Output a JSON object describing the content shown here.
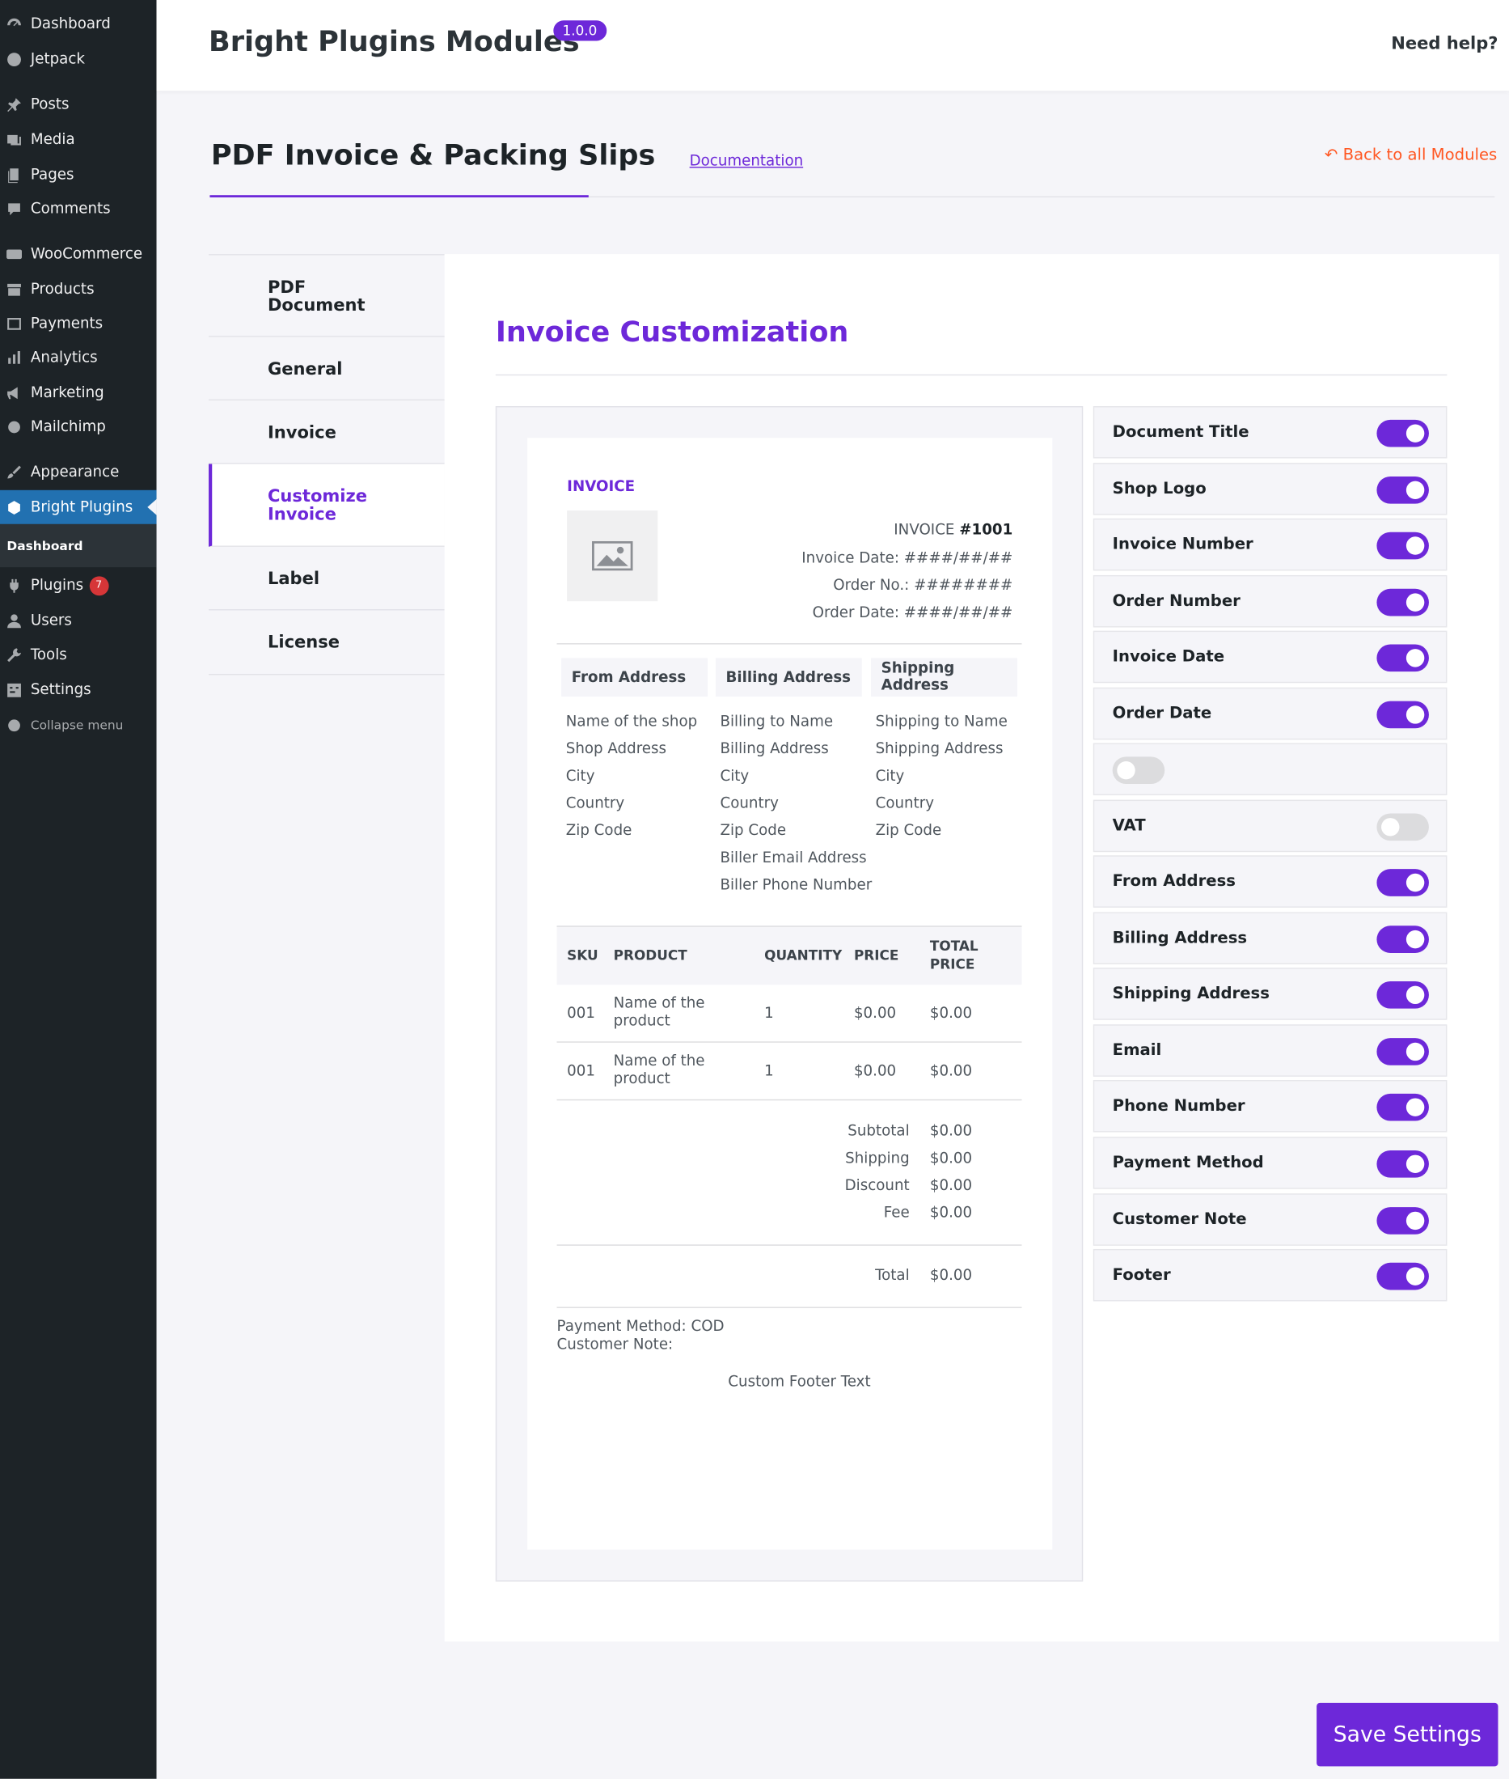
{
  "sidebar": {
    "items": [
      {
        "label": "Dashboard",
        "icon": "dashboard-icon"
      },
      {
        "label": "Jetpack",
        "icon": "jetpack-icon"
      },
      {
        "label": "Posts",
        "icon": "pin-icon"
      },
      {
        "label": "Media",
        "icon": "media-icon"
      },
      {
        "label": "Pages",
        "icon": "pages-icon"
      },
      {
        "label": "Comments",
        "icon": "comment-icon"
      },
      {
        "label": "WooCommerce",
        "icon": "woo-icon"
      },
      {
        "label": "Products",
        "icon": "archive-icon"
      },
      {
        "label": "Payments",
        "icon": "payments-icon"
      },
      {
        "label": "Analytics",
        "icon": "chart-icon"
      },
      {
        "label": "Marketing",
        "icon": "megaphone-icon"
      },
      {
        "label": "Mailchimp",
        "icon": "mailchimp-icon"
      },
      {
        "label": "Appearance",
        "icon": "brush-icon"
      },
      {
        "label": "Bright Plugins",
        "icon": "bright-plugins-icon"
      },
      {
        "label": "Plugins",
        "icon": "plugin-icon",
        "badge": "7"
      },
      {
        "label": "Users",
        "icon": "users-icon"
      },
      {
        "label": "Tools",
        "icon": "wrench-icon"
      },
      {
        "label": "Settings",
        "icon": "settings-icon"
      },
      {
        "label": "Collapse menu",
        "icon": "collapse-icon"
      }
    ],
    "submenu": "Dashboard"
  },
  "header": {
    "title": "Bright Plugins Modules",
    "version": "1.0.0",
    "help": "Need help?"
  },
  "page": {
    "title": "PDF Invoice & Packing Slips",
    "docs_link": "Documentation",
    "back_link": "Back to all Modules"
  },
  "tabs": [
    {
      "label": "PDF Document"
    },
    {
      "label": "General"
    },
    {
      "label": "Invoice"
    },
    {
      "label": "Customize Invoice"
    },
    {
      "label": "Label"
    },
    {
      "label": "License"
    }
  ],
  "panel": {
    "title": "Invoice Customization"
  },
  "invoice": {
    "label": "INVOICE",
    "number_prefix": "INVOICE",
    "number": "#1001",
    "date": "Invoice Date: ####/##/##",
    "order_no": "Order No.: ########",
    "order_date": "Order Date: ####/##/##",
    "addresses": [
      {
        "title": "From Address",
        "lines": [
          "Name of the shop",
          "Shop Address",
          "City",
          "Country",
          "Zip Code"
        ]
      },
      {
        "title": "Billing Address",
        "lines": [
          "Billing to Name",
          "Billing Address",
          "City",
          "Country",
          "Zip Code",
          "Biller Email Address",
          "Biller Phone Number"
        ]
      },
      {
        "title": "Shipping Address",
        "lines": [
          "Shipping to Name",
          "Shipping Address",
          "City",
          "Country",
          "Zip Code"
        ]
      }
    ],
    "table_headers": {
      "sku": "SKU",
      "product": "PRODUCT",
      "quantity": "QUANTITY",
      "price": "PRICE",
      "total1": "TOTAL",
      "total2": "PRICE"
    },
    "rows": [
      {
        "sku": "001",
        "product1": "Name of the",
        "product2": "product",
        "qty": "1",
        "price": "$0.00",
        "total": "$0.00"
      },
      {
        "sku": "001",
        "product1": "Name of the",
        "product2": "product",
        "qty": "1",
        "price": "$0.00",
        "total": "$0.00"
      }
    ],
    "totals": [
      {
        "label": "Subtotal",
        "value": "$0.00"
      },
      {
        "label": "Shipping",
        "value": "$0.00"
      },
      {
        "label": "Discount",
        "value": "$0.00"
      },
      {
        "label": "Fee",
        "value": "$0.00"
      }
    ],
    "grand_total": {
      "label": "Total",
      "value": "$0.00"
    },
    "payment_method": "Payment Method: COD",
    "customer_note": "Customer Note:",
    "footer": "Custom Footer Text"
  },
  "toggles": [
    {
      "label": "Document Title",
      "on": true
    },
    {
      "label": "Shop Logo",
      "on": true
    },
    {
      "label": "Invoice Number",
      "on": true
    },
    {
      "label": "Order Number",
      "on": true
    },
    {
      "label": "Invoice Date",
      "on": true
    },
    {
      "label": "Order Date",
      "on": true
    },
    {
      "label": "",
      "on": false
    },
    {
      "label": "VAT",
      "on": false
    },
    {
      "label": "From Address",
      "on": true
    },
    {
      "label": "Billing Address",
      "on": true
    },
    {
      "label": "Shipping Address",
      "on": true
    },
    {
      "label": "Email",
      "on": true
    },
    {
      "label": "Phone Number",
      "on": true
    },
    {
      "label": "Payment Method",
      "on": true
    },
    {
      "label": "Customer Note",
      "on": true
    },
    {
      "label": "Footer",
      "on": true
    }
  ],
  "save_label": "Save Settings",
  "colors": {
    "accent": "#6d28d9",
    "sidebar": "#1d2327",
    "active_menu": "#2271b1",
    "back_link": "#ff5722"
  }
}
